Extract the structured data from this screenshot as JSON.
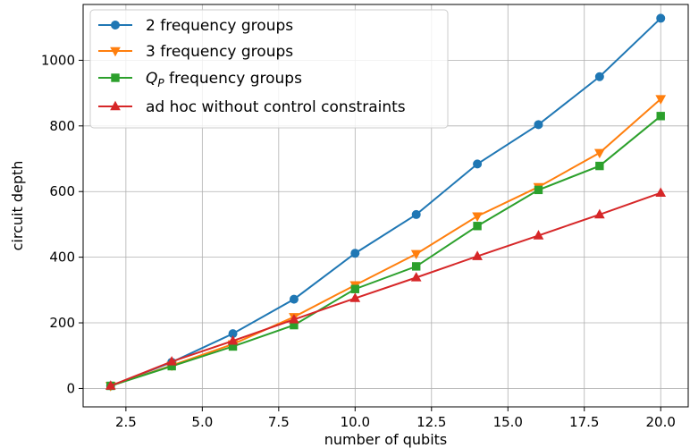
{
  "chart_data": {
    "type": "line",
    "xlabel": "number of qubits",
    "ylabel": "circuit depth",
    "xlim": [
      1.1,
      20.9
    ],
    "ylim": [
      -56,
      1170
    ],
    "xticks": [
      2.5,
      5.0,
      7.5,
      10.0,
      12.5,
      15.0,
      17.5,
      20.0
    ],
    "xtick_labels": [
      "2.5",
      "5.0",
      "7.5",
      "10.0",
      "12.5",
      "15.0",
      "17.5",
      "20.0"
    ],
    "yticks": [
      0,
      200,
      400,
      600,
      800,
      1000
    ],
    "ytick_labels": [
      "0",
      "200",
      "400",
      "600",
      "800",
      "1000"
    ],
    "grid": true,
    "legend_position": "top-left",
    "x": [
      2,
      4,
      6,
      8,
      10,
      12,
      14,
      16,
      18,
      20
    ],
    "series": [
      {
        "name": "2 frequency groups",
        "color": "#1f77b4",
        "marker": "circle",
        "values": [
          8,
          80,
          167,
          272,
          412,
          530,
          684,
          804,
          950,
          1128
        ]
      },
      {
        "name": "3 frequency groups",
        "color": "#ff7f0e",
        "marker": "triangle-down",
        "values": [
          8,
          70,
          135,
          218,
          315,
          410,
          525,
          614,
          718,
          882
        ]
      },
      {
        "name_prefix": "Q",
        "name_subscript": "P",
        "name_suffix": " frequency groups",
        "color": "#2ca02c",
        "marker": "square",
        "values": [
          8,
          68,
          128,
          193,
          303,
          372,
          495,
          605,
          678,
          830
        ]
      },
      {
        "name": "ad hoc without control constraints",
        "color": "#d62728",
        "marker": "triangle-up",
        "values": [
          8,
          82,
          145,
          210,
          275,
          338,
          403,
          466,
          530,
          596
        ]
      }
    ]
  }
}
